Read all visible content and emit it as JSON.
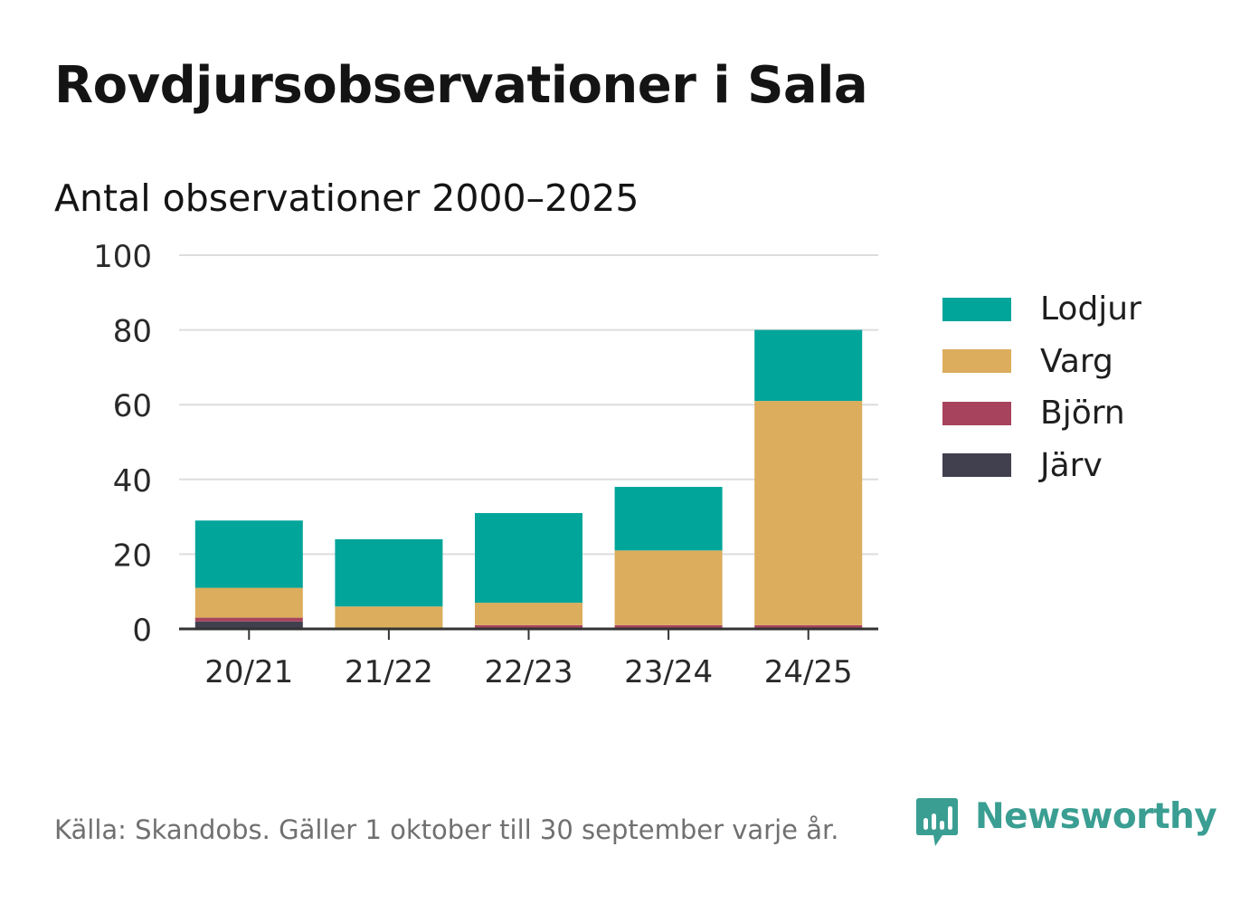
{
  "title": "Rovdjursobservationer i Sala",
  "subtitle": "Antal observationer 2000–2025",
  "source": "Källa: Skandobs. Gäller 1 oktober till 30 september varje år.",
  "brand": "Newsworthy",
  "chart_data": {
    "type": "bar",
    "stacked": true,
    "title": "Rovdjursobservationer i Sala",
    "subtitle": "Antal observationer 2000–2025",
    "xlabel": "",
    "ylabel": "",
    "ylim": [
      0,
      100
    ],
    "yticks": [
      0,
      20,
      40,
      60,
      80,
      100
    ],
    "grid": true,
    "legend_position": "right",
    "categories": [
      "20/21",
      "21/22",
      "22/23",
      "23/24",
      "24/25"
    ],
    "series": [
      {
        "name": "Järv",
        "color": "#41404f",
        "values": [
          2,
          0,
          0,
          0,
          0
        ]
      },
      {
        "name": "Björn",
        "color": "#a8435e",
        "values": [
          1,
          0,
          1,
          1,
          1
        ]
      },
      {
        "name": "Varg",
        "color": "#dbad5c",
        "values": [
          8,
          6,
          6,
          20,
          60
        ]
      },
      {
        "name": "Lodjur",
        "color": "#01a59a",
        "values": [
          18,
          18,
          24,
          17,
          19
        ]
      }
    ],
    "legend_order": [
      "Lodjur",
      "Varg",
      "Björn",
      "Järv"
    ]
  }
}
